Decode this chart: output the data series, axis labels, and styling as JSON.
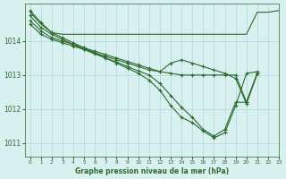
{
  "background_color": "#d8f0f0",
  "grid_color": "#b0d8d8",
  "line_color": "#2d6a2d",
  "xlabel": "Graphe pression niveau de la mer (hPa)",
  "xlim": [
    -0.5,
    23
  ],
  "ylim": [
    1010.6,
    1015.1
  ],
  "xticks": [
    0,
    1,
    2,
    3,
    4,
    5,
    6,
    7,
    8,
    9,
    10,
    11,
    12,
    13,
    14,
    15,
    16,
    17,
    18,
    19,
    20,
    21,
    22,
    23
  ],
  "yticks": [
    1011,
    1012,
    1013,
    1014
  ],
  "series": [
    {
      "x": [
        0,
        1,
        2,
        3,
        4,
        5,
        6,
        7,
        8,
        9,
        10,
        11,
        12,
        13,
        14,
        15,
        16,
        17,
        18,
        19,
        20,
        21,
        22,
        23
      ],
      "y": [
        1014.85,
        1014.5,
        1014.25,
        1014.2,
        1014.2,
        1014.2,
        1014.2,
        1014.2,
        1014.2,
        1014.2,
        1014.2,
        1014.2,
        1014.2,
        1014.2,
        1014.2,
        1014.2,
        1014.2,
        1014.2,
        1014.2,
        1014.2,
        1014.2,
        1014.85,
        1014.85,
        1014.9
      ],
      "marker": false,
      "linestyle": "-"
    },
    {
      "x": [
        0,
        1,
        2,
        3,
        4,
        5,
        6,
        7,
        8,
        9,
        10,
        11,
        12,
        13,
        14,
        15,
        16,
        17,
        18,
        19,
        20,
        21
      ],
      "y": [
        1014.9,
        1014.55,
        1014.25,
        1014.1,
        1013.95,
        1013.8,
        1013.65,
        1013.5,
        1013.35,
        1013.2,
        1013.05,
        1012.85,
        1012.55,
        1012.1,
        1011.75,
        1011.6,
        1011.35,
        1011.15,
        1011.3,
        1012.1,
        1013.05,
        1013.1
      ],
      "marker": true,
      "linestyle": "-"
    },
    {
      "x": [
        0,
        1,
        2,
        3,
        4,
        5,
        6,
        7,
        8,
        9,
        10,
        11,
        12,
        13,
        14,
        15,
        16,
        17,
        18,
        19,
        20,
        21
      ],
      "y": [
        1014.75,
        1014.4,
        1014.2,
        1014.05,
        1013.9,
        1013.75,
        1013.62,
        1013.5,
        1013.38,
        1013.25,
        1013.12,
        1013.0,
        1012.75,
        1012.4,
        1012.05,
        1011.75,
        1011.4,
        1011.2,
        1011.4,
        1012.2,
        1012.2,
        1013.05
      ],
      "marker": true,
      "linestyle": "-"
    },
    {
      "x": [
        0,
        1,
        2,
        3,
        4,
        5,
        6,
        7,
        8,
        9,
        10,
        11,
        12,
        13,
        14,
        15,
        16,
        17,
        18,
        19,
        20,
        21
      ],
      "y": [
        1014.6,
        1014.3,
        1014.1,
        1014.0,
        1013.9,
        1013.8,
        1013.7,
        1013.6,
        1013.5,
        1013.4,
        1013.3,
        1013.2,
        1013.1,
        1013.05,
        1013.0,
        1013.0,
        1013.0,
        1013.0,
        1013.0,
        1013.0,
        1012.2,
        1013.05
      ],
      "marker": true,
      "linestyle": "-"
    },
    {
      "x": [
        0,
        1,
        2,
        3,
        4,
        5,
        6,
        7,
        8,
        9,
        10,
        11,
        12,
        13,
        14,
        15,
        16,
        17,
        18,
        19,
        20,
        21
      ],
      "y": [
        1014.5,
        1014.2,
        1014.05,
        1013.95,
        1013.85,
        1013.75,
        1013.65,
        1013.55,
        1013.45,
        1013.35,
        1013.25,
        1013.15,
        1013.1,
        1013.35,
        1013.45,
        1013.35,
        1013.25,
        1013.15,
        1013.05,
        1012.9,
        1012.15,
        1013.05
      ],
      "marker": true,
      "linestyle": "-"
    }
  ]
}
